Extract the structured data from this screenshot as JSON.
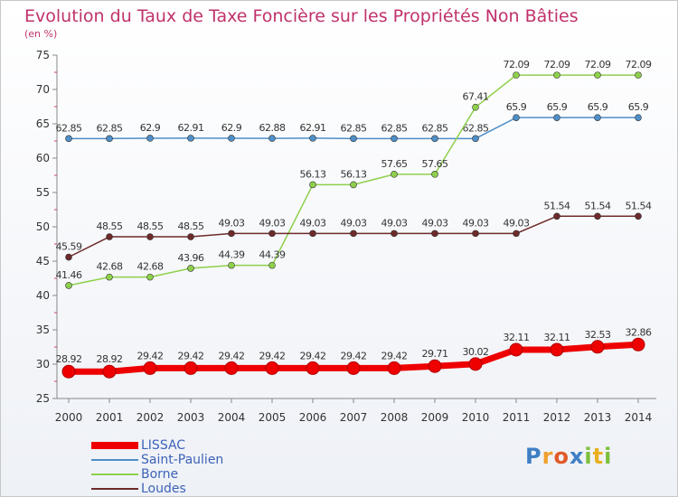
{
  "chart_data": {
    "type": "line",
    "title": "Evolution du Taux de Taxe Foncière sur les Propriétés Non Bâties",
    "ylabel": "(en %)",
    "xlabel": "",
    "ylim": [
      25,
      75
    ],
    "yticks": [
      "25",
      "30",
      "35",
      "40",
      "45",
      "50",
      "55",
      "60",
      "65",
      "70",
      "75"
    ],
    "categories": [
      "2000",
      "2001",
      "2002",
      "2003",
      "2004",
      "2005",
      "2006",
      "2007",
      "2008",
      "2009",
      "2010",
      "2011",
      "2012",
      "2013",
      "2014"
    ],
    "series": [
      {
        "name": "LISSAC",
        "color": "#ee0000",
        "values": [
          28.92,
          28.92,
          29.42,
          29.42,
          29.42,
          29.42,
          29.42,
          29.42,
          29.42,
          29.71,
          30.02,
          32.11,
          32.11,
          32.53,
          32.86
        ],
        "labels": [
          "28.92",
          "28.92",
          "29.42",
          "29.42",
          "29.42",
          "29.42",
          "29.42",
          "29.42",
          "29.42",
          "29.71",
          "30.02",
          "32.11",
          "32.11",
          "32.53",
          "32.86"
        ]
      },
      {
        "name": "Saint-Paulien",
        "color": "#4e8fc8",
        "values": [
          62.85,
          62.85,
          62.9,
          62.91,
          62.9,
          62.88,
          62.91,
          62.85,
          62.85,
          62.85,
          62.85,
          65.9,
          65.9,
          65.9,
          65.9
        ],
        "labels": [
          "62.85",
          "62.85",
          "62.9",
          "62.91",
          "62.9",
          "62.88",
          "62.91",
          "62.85",
          "62.85",
          "62.85",
          "62.85",
          "65.9",
          "65.9",
          "65.9",
          "65.9"
        ]
      },
      {
        "name": "Borne",
        "color": "#8ed04c",
        "values": [
          41.46,
          42.68,
          42.68,
          43.96,
          44.39,
          44.39,
          56.13,
          56.13,
          57.65,
          57.65,
          67.41,
          72.09,
          72.09,
          72.09,
          72.09
        ],
        "labels": [
          "41.46",
          "42.68",
          "42.68",
          "43.96",
          "44.39",
          "44.39",
          "56.13",
          "56.13",
          "57.65",
          "57.65",
          "67.41",
          "72.09",
          "72.09",
          "72.09",
          "72.09"
        ]
      },
      {
        "name": "Loudes",
        "color": "#6e2a2a",
        "values": [
          45.59,
          48.55,
          48.55,
          48.55,
          49.03,
          49.03,
          49.03,
          49.03,
          49.03,
          49.03,
          49.03,
          49.03,
          51.54,
          51.54,
          51.54
        ],
        "labels": [
          "45.59",
          "48.55",
          "48.55",
          "48.55",
          "49.03",
          "49.03",
          "49.03",
          "49.03",
          "49.03",
          "49.03",
          "49.03",
          "49.03",
          "51.54",
          "51.54",
          "51.54"
        ]
      }
    ],
    "legend": "bottom-left",
    "grid": false
  },
  "logo": {
    "letters": [
      "P",
      "r",
      "o",
      "x",
      "i",
      "t",
      "i"
    ],
    "colors": [
      "#3f7fc4",
      "#f0a030",
      "#e05a2a",
      "#3f7fc4",
      "#7bbf3a",
      "#e8b020",
      "#7bbf3a"
    ]
  }
}
